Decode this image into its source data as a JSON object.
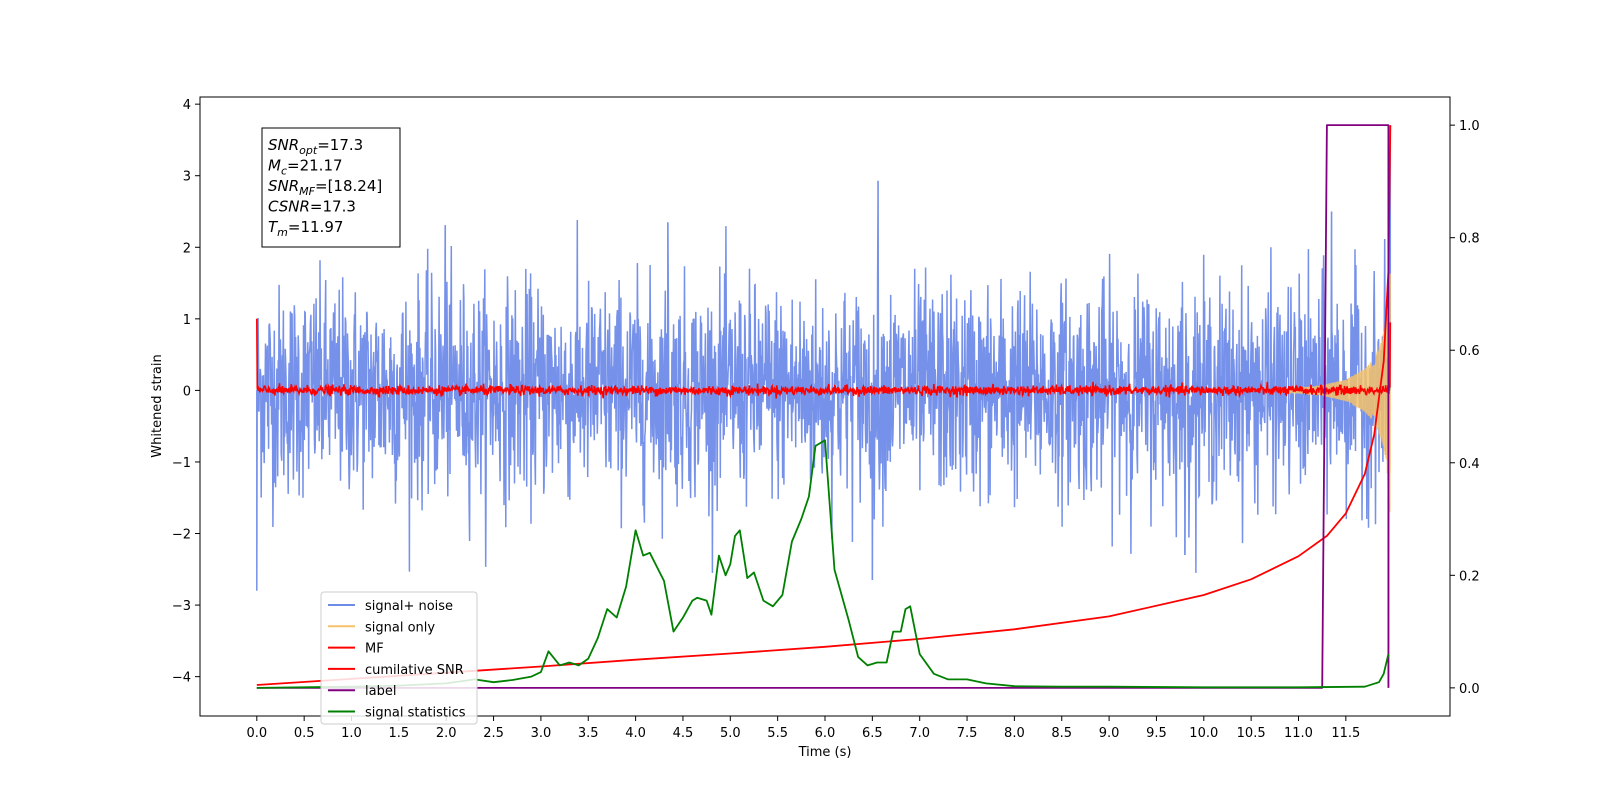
{
  "chart_data": {
    "type": "line",
    "xlabel": "Time (s)",
    "ylabel": "Whitened strain",
    "xlim": [
      -0.6,
      12.6
    ],
    "ylim": [
      -4.55,
      4.1
    ],
    "y2lim": [
      -0.05,
      1.05
    ],
    "x_ticks": [
      0.0,
      0.5,
      1.0,
      1.5,
      2.0,
      2.5,
      3.0,
      3.5,
      4.0,
      4.5,
      5.0,
      5.5,
      6.0,
      6.5,
      7.0,
      7.5,
      8.0,
      8.5,
      9.0,
      9.5,
      10.0,
      10.5,
      11.0,
      11.5
    ],
    "x_tick_labels": [
      "0.0",
      "0.5",
      "1.0",
      "1.5",
      "2.0",
      "2.5",
      "3.0",
      "3.5",
      "4.0",
      "4.5",
      "5.0",
      "5.5",
      "6.0",
      "6.5",
      "7.0",
      "7.5",
      "8.0",
      "8.5",
      "9.0",
      "9.5",
      "10.0",
      "10.5",
      "11.0",
      "11.5"
    ],
    "y_ticks": [
      4,
      3,
      2,
      1,
      0,
      -1,
      -2,
      -3,
      -4
    ],
    "y_tick_labels": [
      "4",
      "3",
      "2",
      "1",
      "0",
      "−1",
      "−2",
      "−3",
      "−4"
    ],
    "y2_ticks": [
      1.0,
      0.8,
      0.6,
      0.4,
      0.2,
      0.0
    ],
    "y2_tick_labels": [
      "1.0",
      "0.8",
      "0.6",
      "0.4",
      "0.2",
      "0.0"
    ],
    "grid": false,
    "legend_position": "lower-left",
    "annotation": {
      "lines": [
        {
          "main": "SNR",
          "sub": "opt",
          "value": "=17.3"
        },
        {
          "main": "M",
          "sub": "c",
          "value": "=21.17"
        },
        {
          "main": "SNR",
          "sub": "MF",
          "value": "=[18.24]"
        },
        {
          "main": "CSNR",
          "sub": "",
          "value": "=17.3"
        },
        {
          "main": "T",
          "sub": "m",
          "value": "=11.97"
        }
      ]
    },
    "series": [
      {
        "name": "signal+ noise",
        "color": "#6f8be8",
        "axis": "left",
        "style": "noise",
        "x_range": [
          0.0,
          11.97
        ],
        "typical_abs_amplitude": 1.6,
        "notable_peaks": [
          [
            0.0,
            -2.8
          ],
          [
            1.99,
            2.31
          ],
          [
            4.34,
            2.35
          ],
          [
            6.5,
            -2.65
          ],
          [
            6.56,
            2.93
          ],
          [
            9.8,
            -2.3
          ],
          [
            11.35,
            2.5
          ],
          [
            11.95,
            -4.15
          ],
          [
            11.97,
            3.7
          ]
        ]
      },
      {
        "name": "signal only",
        "color": "#f5c26b",
        "axis": "left",
        "style": "chirp",
        "x_range": [
          10.8,
          11.97
        ],
        "envelope": [
          [
            10.8,
            0.02
          ],
          [
            11.2,
            0.06
          ],
          [
            11.5,
            0.15
          ],
          [
            11.7,
            0.3
          ],
          [
            11.8,
            0.45
          ],
          [
            11.88,
            0.7
          ],
          [
            11.93,
            1.0
          ],
          [
            11.97,
            1.8
          ]
        ]
      },
      {
        "name": "MF",
        "color": "#ff0000",
        "axis": "left",
        "style": "mf",
        "x_range": [
          0.0,
          11.97
        ],
        "start_value": 1.0,
        "typical_abs_amplitude": 0.08,
        "end_value": 0.95
      },
      {
        "name": "cumilative SNR",
        "color": "#ff0000",
        "axis": "right",
        "style": "line",
        "x": [
          0.0,
          1.0,
          2.0,
          3.0,
          4.0,
          5.0,
          6.0,
          7.0,
          8.0,
          9.0,
          10.0,
          10.5,
          11.0,
          11.3,
          11.5,
          11.7,
          11.8,
          11.9,
          11.95,
          11.97
        ],
        "y": [
          0.005,
          0.016,
          0.027,
          0.038,
          0.05,
          0.061,
          0.073,
          0.087,
          0.104,
          0.127,
          0.165,
          0.193,
          0.234,
          0.27,
          0.31,
          0.38,
          0.45,
          0.58,
          0.74,
          1.0
        ]
      },
      {
        "name": "label",
        "color": "#800080",
        "axis": "right",
        "style": "line",
        "x": [
          0.0,
          11.25,
          11.3,
          11.95,
          11.95
        ],
        "y": [
          0.0,
          0.0,
          1.0,
          1.0,
          0.0
        ]
      },
      {
        "name": "signal statistics",
        "color": "#008000",
        "axis": "right",
        "style": "line",
        "x": [
          0.0,
          0.5,
          1.0,
          1.5,
          2.0,
          2.3,
          2.5,
          2.7,
          2.9,
          3.0,
          3.08,
          3.2,
          3.3,
          3.4,
          3.5,
          3.6,
          3.7,
          3.8,
          3.9,
          4.0,
          4.08,
          4.15,
          4.3,
          4.4,
          4.5,
          4.6,
          4.65,
          4.75,
          4.8,
          4.88,
          4.95,
          5.0,
          5.05,
          5.1,
          5.18,
          5.25,
          5.35,
          5.45,
          5.55,
          5.65,
          5.75,
          5.83,
          5.9,
          6.0,
          6.1,
          6.25,
          6.35,
          6.45,
          6.55,
          6.65,
          6.72,
          6.8,
          6.85,
          6.9,
          7.0,
          7.15,
          7.3,
          7.5,
          7.7,
          8.0,
          8.5,
          9.0,
          10.0,
          11.0,
          11.7,
          11.85,
          11.9,
          11.95
        ],
        "y": [
          0.0,
          0.001,
          0.002,
          0.004,
          0.008,
          0.015,
          0.01,
          0.014,
          0.02,
          0.028,
          0.065,
          0.04,
          0.045,
          0.04,
          0.052,
          0.088,
          0.14,
          0.125,
          0.18,
          0.28,
          0.235,
          0.24,
          0.19,
          0.1,
          0.125,
          0.155,
          0.16,
          0.155,
          0.13,
          0.235,
          0.2,
          0.22,
          0.27,
          0.28,
          0.195,
          0.205,
          0.155,
          0.145,
          0.165,
          0.26,
          0.3,
          0.34,
          0.43,
          0.44,
          0.21,
          0.12,
          0.055,
          0.04,
          0.045,
          0.045,
          0.1,
          0.1,
          0.14,
          0.145,
          0.06,
          0.025,
          0.015,
          0.015,
          0.008,
          0.003,
          0.002,
          0.002,
          0.001,
          0.001,
          0.002,
          0.01,
          0.025,
          0.06
        ]
      }
    ]
  }
}
